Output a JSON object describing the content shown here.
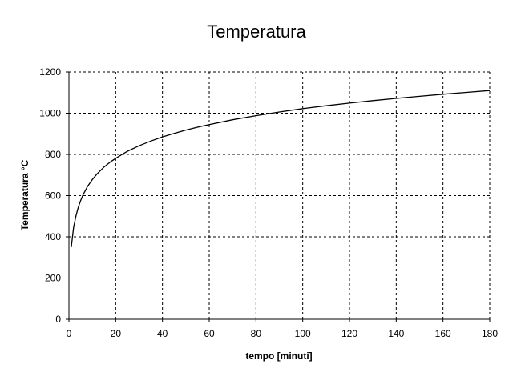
{
  "chart_data": {
    "type": "line",
    "title": "Temperatura",
    "xlabel": "tempo [minuti]",
    "ylabel": "Temperatura °C",
    "xlim": [
      0,
      180
    ],
    "ylim": [
      0,
      1200
    ],
    "x_ticks": [
      0,
      20,
      40,
      60,
      80,
      100,
      120,
      140,
      160,
      180
    ],
    "y_ticks": [
      0,
      200,
      400,
      600,
      800,
      1000,
      1200
    ],
    "grid": true,
    "line_color": "#000000",
    "series": [
      {
        "x": [
          1,
          2,
          3,
          4,
          5,
          6,
          8,
          10,
          12,
          15,
          18,
          20,
          22,
          25,
          30,
          35,
          40,
          45,
          50,
          55,
          60,
          70,
          80,
          90,
          100,
          110,
          120,
          130,
          140,
          150,
          160,
          170,
          180
        ],
        "y": [
          349,
          445,
          502,
          544,
          576,
          603,
          645,
          678,
          705,
          739,
          766,
          781,
          795,
          815,
          842,
          865,
          885,
          902,
          918,
          932,
          945,
          968,
          988,
          1006,
          1022,
          1036,
          1049,
          1061,
          1072,
          1082,
          1092,
          1101,
          1110
        ]
      }
    ]
  }
}
